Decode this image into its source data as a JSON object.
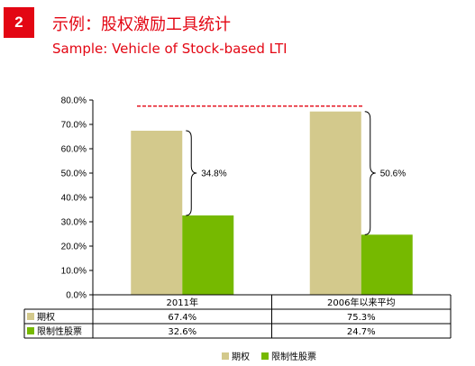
{
  "header": {
    "badge": "2",
    "title_cn": "示例：股权激励工具统计",
    "title_en": "Sample: Vehicle of Stock-based LTI"
  },
  "colors": {
    "accent": "#e30613",
    "option_bar": "#d3c98c",
    "rsu_bar": "#76b900"
  },
  "chart_data": {
    "type": "bar",
    "categories": [
      "2011年",
      "2006年以来平均"
    ],
    "series": [
      {
        "name": "期权",
        "values": [
          67.4,
          75.3
        ],
        "labels": [
          "67.4%",
          "75.3%"
        ]
      },
      {
        "name": "限制性股票",
        "values": [
          32.6,
          24.7
        ],
        "labels": [
          "32.6%",
          "24.7%"
        ]
      }
    ],
    "ylim": [
      0,
      80
    ],
    "yticks": [
      "0.0%",
      "10.0%",
      "20.0%",
      "30.0%",
      "40.0%",
      "50.0%",
      "60.0%",
      "70.0%",
      "80.0%"
    ],
    "annotations": [
      "34.8%",
      "50.6%"
    ],
    "legend_position": "bottom"
  }
}
